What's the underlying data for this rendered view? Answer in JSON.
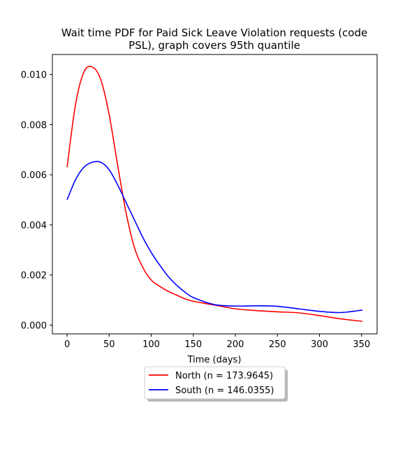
{
  "chart_data": {
    "type": "line",
    "title_line1": "Wait time PDF for Paid Sick Leave Violation  requests (code",
    "title_line2": "PSL), graph covers 95th quantile",
    "xlabel": "Time (days)",
    "ylabel": "",
    "xlim": [
      -17.5,
      368.5
    ],
    "ylim": [
      -0.00035,
      0.0108
    ],
    "xticks": [
      0,
      50,
      100,
      150,
      200,
      250,
      300,
      350
    ],
    "xtick_labels": [
      "0",
      "50",
      "100",
      "150",
      "200",
      "250",
      "300",
      "350"
    ],
    "yticks": [
      0.0,
      0.002,
      0.004,
      0.006,
      0.008,
      0.01
    ],
    "ytick_labels": [
      "0.000",
      "0.002",
      "0.004",
      "0.006",
      "0.008",
      "0.010"
    ],
    "grid": false,
    "legend_placement": "below-center",
    "series": [
      {
        "name": "North (n = 173.9645)",
        "color": "#ff0000",
        "x": [
          0,
          10,
          20,
          30,
          40,
          50,
          60,
          70,
          80,
          90,
          100,
          110,
          120,
          130,
          140,
          150,
          175,
          200,
          225,
          250,
          275,
          300,
          325,
          351
        ],
        "y": [
          0.0063,
          0.0088,
          0.0101,
          0.0103,
          0.0098,
          0.0084,
          0.0064,
          0.0045,
          0.0031,
          0.0023,
          0.0018,
          0.00155,
          0.00135,
          0.0012,
          0.00105,
          0.00095,
          0.0008,
          0.00065,
          0.00058,
          0.00053,
          0.00049,
          0.00038,
          0.00025,
          0.00015
        ]
      },
      {
        "name": "South (n = 146.0355)",
        "color": "#0000ff",
        "x": [
          0,
          10,
          20,
          30,
          40,
          50,
          60,
          70,
          80,
          90,
          100,
          110,
          120,
          130,
          140,
          150,
          175,
          200,
          225,
          250,
          275,
          300,
          325,
          351
        ],
        "y": [
          0.005,
          0.0058,
          0.0063,
          0.0065,
          0.0065,
          0.0062,
          0.0056,
          0.0049,
          0.0042,
          0.0035,
          0.0029,
          0.0024,
          0.00195,
          0.0016,
          0.00132,
          0.0011,
          0.00082,
          0.00076,
          0.00077,
          0.00075,
          0.00065,
          0.00055,
          0.0005,
          0.0006
        ]
      }
    ]
  }
}
